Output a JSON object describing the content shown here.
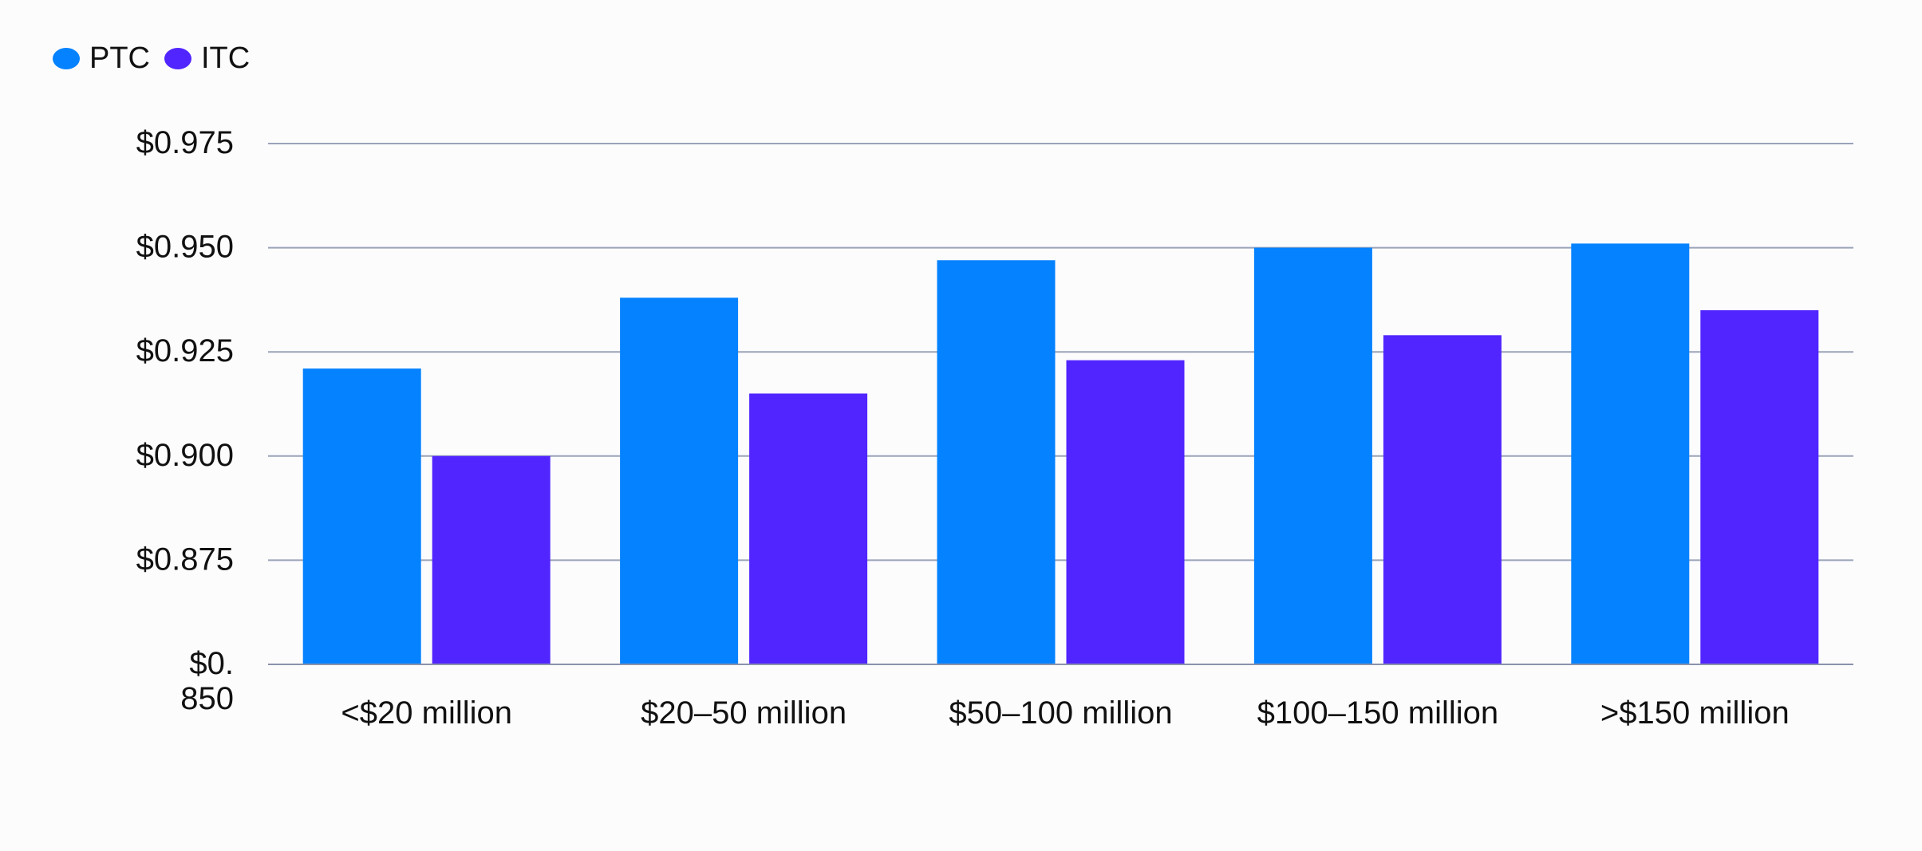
{
  "legend": {
    "items": [
      {
        "label": "PTC",
        "color": "#0582ff"
      },
      {
        "label": "ITC",
        "color": "#5125ff"
      }
    ]
  },
  "chart_data": {
    "type": "bar",
    "title": "",
    "xlabel": "",
    "ylabel": "",
    "categories": [
      "<$20 million",
      "$20–50 million",
      "$50–100 million",
      "$100–150 million",
      ">$150 million"
    ],
    "series": [
      {
        "name": "PTC",
        "color": "#0582ff",
        "values": [
          0.921,
          0.938,
          0.947,
          0.95,
          0.951
        ]
      },
      {
        "name": "ITC",
        "color": "#5125ff",
        "values": [
          0.9,
          0.915,
          0.923,
          0.929,
          0.935
        ]
      }
    ],
    "ylim": [
      0.85,
      0.975
    ],
    "yticks": [
      {
        "value": 0.975,
        "label": "$0.975"
      },
      {
        "value": 0.95,
        "label": "$0.950"
      },
      {
        "value": 0.925,
        "label": "$0.925"
      },
      {
        "value": 0.9,
        "label": "$0.900"
      },
      {
        "value": 0.875,
        "label": "$0.875"
      },
      {
        "value": 0.85,
        "label": "$0.850",
        "lines": [
          "$0.",
          "850"
        ]
      }
    ],
    "grid": true,
    "legend_position": "top-left"
  }
}
